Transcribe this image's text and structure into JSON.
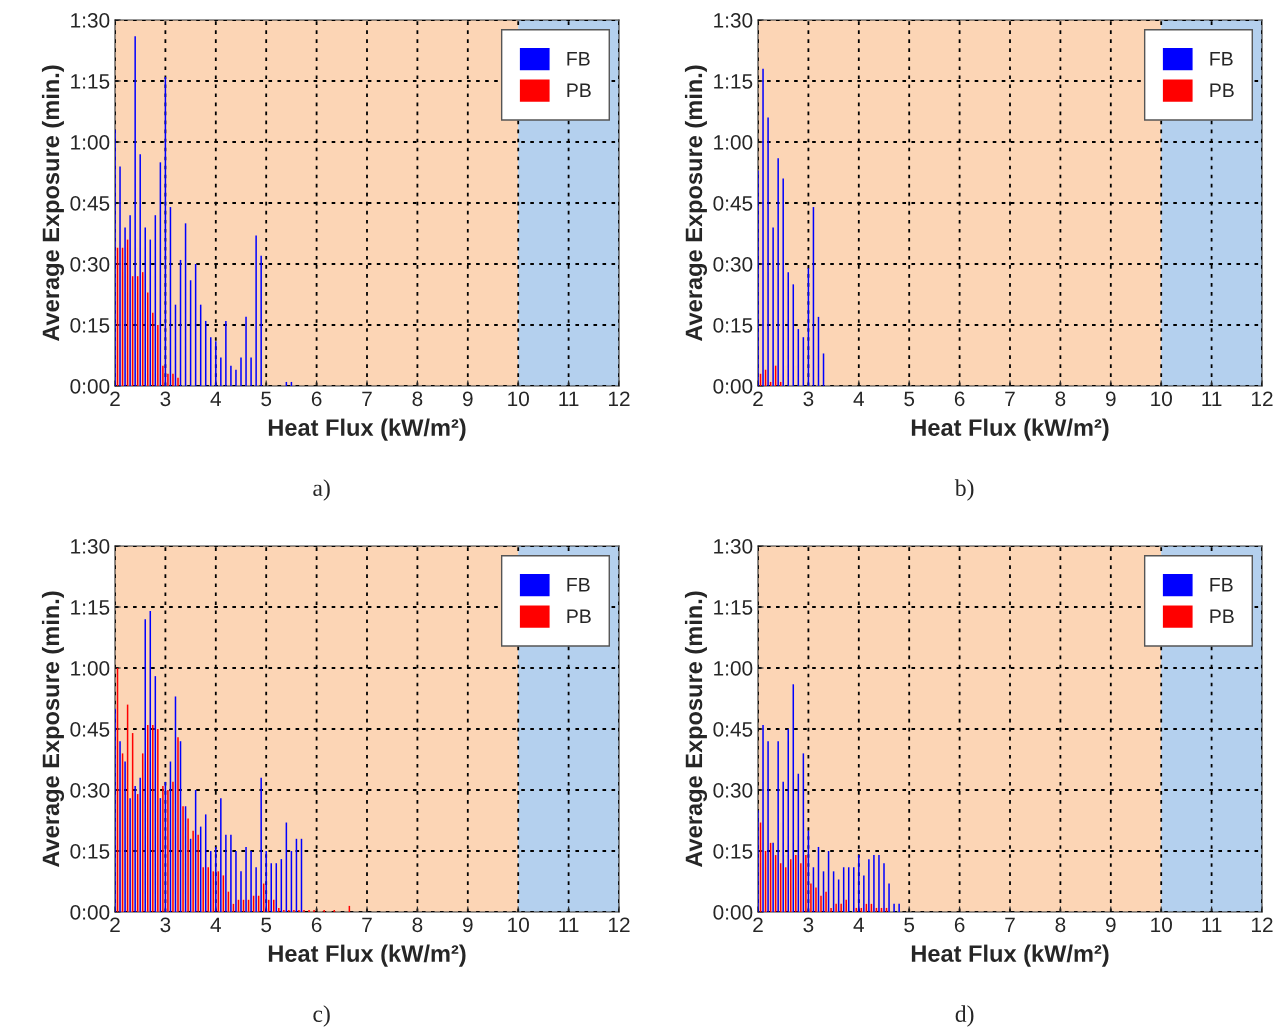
{
  "chart_data": [
    {
      "type": "bar",
      "xlabel": "Heat Flux (kW/m²)",
      "ylabel": "Average Exposure (min.)",
      "annotations": [
        "a)"
      ],
      "xlim": [
        2,
        12
      ],
      "xticks": [
        2,
        3,
        4,
        5,
        6,
        7,
        8,
        9,
        10,
        11,
        12
      ],
      "ylim": [
        0,
        90
      ],
      "yticks": [
        {
          "value": 0,
          "label": "0:00"
        },
        {
          "value": 15,
          "label": "0:15"
        },
        {
          "value": 30,
          "label": "0:30"
        },
        {
          "value": 45,
          "label": "0:45"
        },
        {
          "value": 60,
          "label": "1:00"
        },
        {
          "value": 75,
          "label": "1:15"
        },
        {
          "value": 90,
          "label": "1:30"
        }
      ],
      "grid": true,
      "legend": "top right",
      "bands": [
        {
          "axis": "x",
          "from": 2,
          "to": 10,
          "color": "#fcd5b5"
        },
        {
          "axis": "x",
          "from": 10,
          "to": 12,
          "color": "#b4d0ee"
        }
      ],
      "series": [
        {
          "name": "FB",
          "color": "#0000ff",
          "x": [
            2.0,
            2.1,
            2.2,
            2.3,
            2.4,
            2.5,
            2.6,
            2.7,
            2.8,
            2.9,
            3.0,
            3.1,
            3.2,
            3.3,
            3.4,
            3.5,
            3.6,
            3.7,
            3.8,
            3.9,
            4.0,
            4.1,
            4.2,
            4.3,
            4.4,
            4.5,
            4.6,
            4.7,
            4.8,
            4.9,
            5.4,
            5.5
          ],
          "values": [
            63,
            54,
            39,
            42,
            86,
            57,
            39,
            36,
            42,
            55,
            76,
            44,
            20,
            31,
            40,
            26,
            30,
            20,
            16,
            12,
            11,
            7,
            16,
            5,
            4,
            7,
            17,
            7,
            37,
            32,
            1,
            1
          ]
        },
        {
          "name": "PB",
          "color": "#ff0000",
          "x": [
            2.05,
            2.15,
            2.25,
            2.35,
            2.45,
            2.55,
            2.65,
            2.75,
            2.85,
            2.95,
            3.05,
            3.15,
            3.25
          ],
          "values": [
            34,
            34,
            36,
            27,
            27,
            28,
            23,
            18,
            15,
            5,
            3,
            3,
            2
          ]
        }
      ]
    },
    {
      "type": "bar",
      "xlabel": "Heat Flux (kW/m²)",
      "ylabel": "Average Exposure (min.)",
      "annotations": [
        "b)"
      ],
      "xlim": [
        2,
        12
      ],
      "xticks": [
        2,
        3,
        4,
        5,
        6,
        7,
        8,
        9,
        10,
        11,
        12
      ],
      "ylim": [
        0,
        90
      ],
      "yticks": [
        {
          "value": 0,
          "label": "0:00"
        },
        {
          "value": 15,
          "label": "0:15"
        },
        {
          "value": 30,
          "label": "0:30"
        },
        {
          "value": 45,
          "label": "0:45"
        },
        {
          "value": 60,
          "label": "1:00"
        },
        {
          "value": 75,
          "label": "1:15"
        },
        {
          "value": 90,
          "label": "1:30"
        }
      ],
      "grid": true,
      "legend": "top right",
      "bands": [
        {
          "axis": "x",
          "from": 2,
          "to": 10,
          "color": "#fcd5b5"
        },
        {
          "axis": "x",
          "from": 10,
          "to": 12,
          "color": "#b4d0ee"
        }
      ],
      "series": [
        {
          "name": "FB",
          "color": "#0000ff",
          "x": [
            2.0,
            2.1,
            2.2,
            2.3,
            2.4,
            2.5,
            2.6,
            2.7,
            2.8,
            2.9,
            3.0,
            3.1,
            3.2,
            3.3
          ],
          "values": [
            53,
            78,
            66,
            39,
            56,
            51,
            28,
            25,
            14,
            12,
            29,
            44,
            17,
            8
          ]
        },
        {
          "name": "PB",
          "color": "#ff0000",
          "x": [
            2.05,
            2.15,
            2.25,
            2.35,
            2.45
          ],
          "values": [
            3,
            4,
            1,
            5,
            1
          ]
        }
      ]
    },
    {
      "type": "bar",
      "xlabel": "Heat Flux (kW/m²)",
      "ylabel": "Average Exposure (min.)",
      "annotations": [
        "c)"
      ],
      "xlim": [
        2,
        12
      ],
      "xticks": [
        2,
        3,
        4,
        5,
        6,
        7,
        8,
        9,
        10,
        11,
        12
      ],
      "ylim": [
        0,
        90
      ],
      "yticks": [
        {
          "value": 0,
          "label": "0:00"
        },
        {
          "value": 15,
          "label": "0:15"
        },
        {
          "value": 30,
          "label": "0:30"
        },
        {
          "value": 45,
          "label": "0:45"
        },
        {
          "value": 60,
          "label": "1:00"
        },
        {
          "value": 75,
          "label": "1:15"
        },
        {
          "value": 90,
          "label": "1:30"
        }
      ],
      "grid": true,
      "legend": "top right",
      "bands": [
        {
          "axis": "x",
          "from": 2,
          "to": 10,
          "color": "#fcd5b5"
        },
        {
          "axis": "x",
          "from": 10,
          "to": 12,
          "color": "#b4d0ee"
        }
      ],
      "series": [
        {
          "name": "FB",
          "color": "#0000ff",
          "x": [
            2.0,
            2.1,
            2.2,
            2.3,
            2.4,
            2.5,
            2.6,
            2.7,
            2.8,
            2.9,
            3.0,
            3.1,
            3.2,
            3.3,
            3.4,
            3.5,
            3.6,
            3.7,
            3.8,
            3.9,
            4.0,
            4.1,
            4.2,
            4.3,
            4.4,
            4.5,
            4.6,
            4.7,
            4.8,
            4.9,
            5.0,
            5.1,
            5.2,
            5.3,
            5.4,
            5.5,
            5.6,
            5.7
          ],
          "values": [
            50,
            42,
            37,
            28,
            31,
            33,
            72,
            74,
            58,
            28,
            32,
            37,
            53,
            42,
            26,
            18,
            30,
            21,
            24,
            15,
            16,
            28,
            19,
            19,
            15,
            10,
            16,
            15,
            11,
            33,
            15,
            12,
            12,
            13,
            22,
            15,
            18,
            18
          ]
        },
        {
          "name": "PB",
          "color": "#ff0000",
          "x": [
            2.05,
            2.15,
            2.25,
            2.35,
            2.45,
            2.55,
            2.65,
            2.75,
            2.85,
            2.95,
            3.05,
            3.15,
            3.25,
            3.35,
            3.45,
            3.55,
            3.65,
            3.75,
            3.85,
            3.95,
            4.05,
            4.15,
            4.25,
            4.35,
            4.45,
            4.55,
            4.65,
            4.75,
            4.85,
            4.95,
            5.05,
            5.15,
            5.25,
            5.35,
            5.45,
            5.55,
            5.65,
            5.75,
            5.85,
            5.95,
            6.15,
            6.35,
            6.65
          ],
          "values": [
            60,
            39,
            51,
            44,
            29,
            39,
            46,
            46,
            45,
            31,
            30,
            32,
            43,
            26,
            23,
            20,
            19,
            11,
            11,
            10,
            10,
            9,
            5,
            2,
            3,
            3,
            3,
            4,
            4,
            7,
            3,
            3,
            1,
            0.5,
            0.5,
            0.5,
            0.5,
            0.5,
            0.5,
            0.5,
            0.5,
            0.5,
            1.5
          ]
        }
      ]
    },
    {
      "type": "bar",
      "xlabel": "Heat Flux (kW/m²)",
      "ylabel": "Average Exposure (min.)",
      "annotations": [
        "d)"
      ],
      "xlim": [
        2,
        12
      ],
      "xticks": [
        2,
        3,
        4,
        5,
        6,
        7,
        8,
        9,
        10,
        11,
        12
      ],
      "ylim": [
        0,
        90
      ],
      "yticks": [
        {
          "value": 0,
          "label": "0:00"
        },
        {
          "value": 15,
          "label": "0:15"
        },
        {
          "value": 30,
          "label": "0:30"
        },
        {
          "value": 45,
          "label": "0:45"
        },
        {
          "value": 60,
          "label": "1:00"
        },
        {
          "value": 75,
          "label": "1:15"
        },
        {
          "value": 90,
          "label": "1:30"
        }
      ],
      "grid": true,
      "legend": "top right",
      "bands": [
        {
          "axis": "x",
          "from": 2,
          "to": 10,
          "color": "#fcd5b5"
        },
        {
          "axis": "x",
          "from": 10,
          "to": 12,
          "color": "#b4d0ee"
        }
      ],
      "series": [
        {
          "name": "FB",
          "color": "#0000ff",
          "x": [
            2.0,
            2.1,
            2.2,
            2.3,
            2.4,
            2.5,
            2.6,
            2.7,
            2.8,
            2.9,
            3.0,
            3.1,
            3.2,
            3.3,
            3.4,
            3.5,
            3.6,
            3.7,
            3.8,
            3.9,
            4.0,
            4.1,
            4.2,
            4.3,
            4.4,
            4.5,
            4.6,
            4.7,
            4.8
          ],
          "values": [
            25,
            46,
            42,
            17,
            42,
            32,
            45,
            56,
            34,
            39,
            20,
            11,
            16,
            10,
            15,
            10,
            8,
            11,
            11,
            11,
            14,
            9,
            13,
            14,
            14,
            12,
            7,
            2,
            2
          ]
        },
        {
          "name": "PB",
          "color": "#ff0000",
          "x": [
            2.05,
            2.15,
            2.25,
            2.35,
            2.45,
            2.55,
            2.65,
            2.75,
            2.85,
            2.95,
            3.05,
            3.15,
            3.25,
            3.35,
            3.45,
            3.55,
            3.65,
            3.75,
            3.85,
            3.95,
            4.05,
            4.15,
            4.25,
            4.35,
            4.45,
            4.55
          ],
          "values": [
            22,
            15,
            17,
            14,
            12,
            11,
            13,
            14,
            12,
            14,
            7,
            6,
            4,
            5,
            1,
            2,
            2,
            3,
            0,
            1,
            1,
            2,
            2,
            1,
            1,
            1
          ]
        }
      ]
    }
  ]
}
